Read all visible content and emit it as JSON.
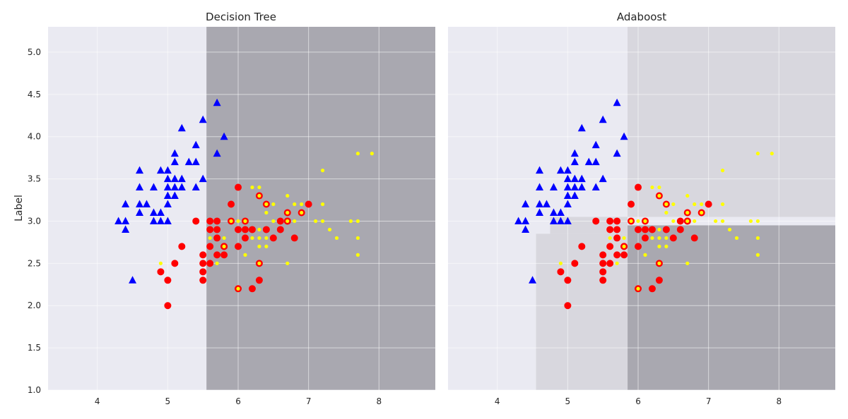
{
  "figure": {
    "background": "#ffffff",
    "axes_facecolor": "#eaeaf2",
    "grid": true
  },
  "colors": {
    "class_0": "#0000ff",
    "class_1": "#ff0000",
    "class_2": "#ffff00",
    "region_light": "#eaeaf2",
    "region_mid": "#d8d7de",
    "region_dark": "#a9a8b0"
  },
  "chart_data": [
    {
      "type": "scatter",
      "title": "Decision Tree",
      "xlabel": "",
      "ylabel": "Label",
      "xlim": [
        3.3,
        8.8
      ],
      "ylim": [
        1.0,
        5.3
      ],
      "xticks": [
        "4",
        "5",
        "6",
        "7",
        "8"
      ],
      "yticks": [
        "1.0",
        "1.5",
        "2.0",
        "2.5",
        "3.0",
        "3.5",
        "4.0",
        "4.5",
        "5.0"
      ],
      "decision_regions": [
        {
          "shade": "dark",
          "x": [
            5.55,
            8.8
          ],
          "y": [
            1.0,
            5.3
          ]
        }
      ],
      "train_triangles": [
        [
          4.3,
          3.0
        ],
        [
          4.4,
          2.9
        ],
        [
          4.4,
          3.0
        ],
        [
          4.4,
          3.2
        ],
        [
          4.5,
          2.3
        ],
        [
          4.6,
          3.1
        ],
        [
          4.6,
          3.2
        ],
        [
          4.6,
          3.4
        ],
        [
          4.6,
          3.6
        ],
        [
          4.7,
          3.2
        ],
        [
          4.8,
          3.0
        ],
        [
          4.8,
          3.1
        ],
        [
          4.8,
          3.4
        ],
        [
          4.9,
          3.0
        ],
        [
          4.9,
          3.1
        ],
        [
          4.9,
          3.6
        ],
        [
          5.0,
          3.0
        ],
        [
          5.0,
          3.2
        ],
        [
          5.0,
          3.3
        ],
        [
          5.0,
          3.4
        ],
        [
          5.0,
          3.5
        ],
        [
          5.0,
          3.6
        ],
        [
          5.1,
          3.3
        ],
        [
          5.1,
          3.4
        ],
        [
          5.1,
          3.5
        ],
        [
          5.1,
          3.7
        ],
        [
          5.1,
          3.8
        ],
        [
          5.2,
          3.4
        ],
        [
          5.2,
          3.5
        ],
        [
          5.2,
          4.1
        ],
        [
          5.3,
          3.7
        ],
        [
          5.4,
          3.4
        ],
        [
          5.4,
          3.7
        ],
        [
          5.4,
          3.9
        ],
        [
          5.5,
          3.5
        ],
        [
          5.5,
          4.2
        ],
        [
          5.7,
          3.8
        ],
        [
          5.7,
          4.4
        ],
        [
          5.8,
          4.0
        ]
      ],
      "train_circles": [
        [
          4.9,
          2.4
        ],
        [
          5.0,
          2.0
        ],
        [
          5.0,
          2.3
        ],
        [
          5.1,
          2.5
        ],
        [
          5.2,
          2.7
        ],
        [
          5.4,
          3.0
        ],
        [
          5.5,
          2.3
        ],
        [
          5.5,
          2.4
        ],
        [
          5.5,
          2.5
        ],
        [
          5.5,
          2.6
        ],
        [
          5.6,
          2.5
        ],
        [
          5.6,
          2.7
        ],
        [
          5.6,
          2.9
        ],
        [
          5.6,
          3.0
        ],
        [
          5.7,
          2.6
        ],
        [
          5.7,
          2.8
        ],
        [
          5.7,
          2.9
        ],
        [
          5.7,
          3.0
        ],
        [
          5.8,
          2.6
        ],
        [
          5.8,
          2.7
        ],
        [
          5.9,
          3.2
        ],
        [
          6.0,
          2.7
        ],
        [
          6.0,
          2.9
        ],
        [
          6.0,
          3.4
        ],
        [
          6.1,
          2.8
        ],
        [
          6.1,
          2.9
        ],
        [
          6.2,
          2.2
        ],
        [
          6.2,
          2.9
        ],
        [
          6.3,
          2.3
        ],
        [
          6.4,
          2.9
        ],
        [
          6.5,
          2.8
        ],
        [
          6.6,
          2.9
        ],
        [
          6.6,
          3.0
        ],
        [
          6.7,
          3.0
        ],
        [
          6.8,
          2.8
        ],
        [
          7.0,
          3.2
        ]
      ],
      "train_ringed": [
        [
          5.8,
          2.7
        ],
        [
          5.9,
          3.0
        ],
        [
          6.0,
          2.2
        ],
        [
          6.1,
          3.0
        ],
        [
          6.3,
          2.5
        ],
        [
          6.3,
          3.3
        ],
        [
          6.4,
          3.2
        ],
        [
          6.7,
          3.0
        ],
        [
          6.7,
          3.1
        ],
        [
          6.9,
          3.1
        ]
      ],
      "train_dots": [
        [
          4.9,
          2.5
        ],
        [
          5.6,
          2.8
        ],
        [
          5.7,
          2.5
        ],
        [
          5.8,
          2.8
        ],
        [
          6.0,
          3.0
        ],
        [
          6.1,
          2.6
        ],
        [
          6.1,
          3.0
        ],
        [
          6.2,
          2.8
        ],
        [
          6.2,
          3.4
        ],
        [
          6.3,
          2.7
        ],
        [
          6.3,
          2.8
        ],
        [
          6.3,
          2.9
        ],
        [
          6.3,
          3.4
        ],
        [
          6.4,
          2.7
        ],
        [
          6.4,
          2.8
        ],
        [
          6.4,
          3.1
        ],
        [
          6.5,
          3.0
        ],
        [
          6.5,
          3.2
        ],
        [
          6.7,
          2.5
        ],
        [
          6.7,
          3.3
        ],
        [
          6.8,
          3.0
        ],
        [
          6.8,
          3.2
        ],
        [
          6.9,
          3.2
        ],
        [
          7.1,
          3.0
        ],
        [
          7.2,
          3.0
        ],
        [
          7.2,
          3.2
        ],
        [
          7.2,
          3.6
        ],
        [
          7.3,
          2.9
        ],
        [
          7.4,
          2.8
        ],
        [
          7.6,
          3.0
        ],
        [
          7.7,
          2.6
        ],
        [
          7.7,
          2.8
        ],
        [
          7.7,
          3.0
        ],
        [
          7.7,
          3.8
        ],
        [
          7.9,
          3.8
        ]
      ]
    },
    {
      "type": "scatter",
      "title": "Adaboost",
      "xlabel": "",
      "ylabel": "",
      "xlim": [
        3.3,
        8.8
      ],
      "ylim": [
        1.0,
        5.3
      ],
      "xticks": [
        "4",
        "5",
        "6",
        "7",
        "8"
      ],
      "yticks": [],
      "decision_regions": [
        {
          "shade": "mid",
          "x": [
            5.85,
            8.8
          ],
          "y": [
            3.05,
            5.3
          ]
        },
        {
          "shade": "mid",
          "x": [
            4.55,
            5.85
          ],
          "y": [
            1.0,
            2.85
          ]
        },
        {
          "shade": "mid",
          "x": [
            4.75,
            5.85
          ],
          "y": [
            2.85,
            3.05
          ]
        },
        {
          "shade": "dark",
          "x": [
            5.85,
            8.8
          ],
          "y": [
            1.0,
            2.95
          ]
        }
      ],
      "train_triangles": [
        [
          4.3,
          3.0
        ],
        [
          4.4,
          2.9
        ],
        [
          4.4,
          3.0
        ],
        [
          4.4,
          3.2
        ],
        [
          4.5,
          2.3
        ],
        [
          4.6,
          3.1
        ],
        [
          4.6,
          3.2
        ],
        [
          4.6,
          3.4
        ],
        [
          4.6,
          3.6
        ],
        [
          4.7,
          3.2
        ],
        [
          4.8,
          3.0
        ],
        [
          4.8,
          3.1
        ],
        [
          4.8,
          3.4
        ],
        [
          4.9,
          3.0
        ],
        [
          4.9,
          3.1
        ],
        [
          4.9,
          3.6
        ],
        [
          5.0,
          3.0
        ],
        [
          5.0,
          3.2
        ],
        [
          5.0,
          3.3
        ],
        [
          5.0,
          3.4
        ],
        [
          5.0,
          3.5
        ],
        [
          5.0,
          3.6
        ],
        [
          5.1,
          3.3
        ],
        [
          5.1,
          3.4
        ],
        [
          5.1,
          3.5
        ],
        [
          5.1,
          3.7
        ],
        [
          5.1,
          3.8
        ],
        [
          5.2,
          3.4
        ],
        [
          5.2,
          3.5
        ],
        [
          5.2,
          4.1
        ],
        [
          5.3,
          3.7
        ],
        [
          5.4,
          3.4
        ],
        [
          5.4,
          3.7
        ],
        [
          5.4,
          3.9
        ],
        [
          5.5,
          3.5
        ],
        [
          5.5,
          4.2
        ],
        [
          5.7,
          3.8
        ],
        [
          5.7,
          4.4
        ],
        [
          5.8,
          4.0
        ]
      ],
      "train_circles": [
        [
          4.9,
          2.4
        ],
        [
          5.0,
          2.0
        ],
        [
          5.0,
          2.3
        ],
        [
          5.1,
          2.5
        ],
        [
          5.2,
          2.7
        ],
        [
          5.4,
          3.0
        ],
        [
          5.5,
          2.3
        ],
        [
          5.5,
          2.4
        ],
        [
          5.5,
          2.5
        ],
        [
          5.5,
          2.6
        ],
        [
          5.6,
          2.5
        ],
        [
          5.6,
          2.7
        ],
        [
          5.6,
          2.9
        ],
        [
          5.6,
          3.0
        ],
        [
          5.7,
          2.6
        ],
        [
          5.7,
          2.8
        ],
        [
          5.7,
          2.9
        ],
        [
          5.7,
          3.0
        ],
        [
          5.8,
          2.6
        ],
        [
          5.8,
          2.7
        ],
        [
          5.9,
          3.2
        ],
        [
          6.0,
          2.7
        ],
        [
          6.0,
          2.9
        ],
        [
          6.0,
          3.4
        ],
        [
          6.1,
          2.8
        ],
        [
          6.1,
          2.9
        ],
        [
          6.2,
          2.2
        ],
        [
          6.2,
          2.9
        ],
        [
          6.3,
          2.3
        ],
        [
          6.4,
          2.9
        ],
        [
          6.5,
          2.8
        ],
        [
          6.6,
          2.9
        ],
        [
          6.6,
          3.0
        ],
        [
          6.7,
          3.0
        ],
        [
          6.8,
          2.8
        ],
        [
          7.0,
          3.2
        ]
      ],
      "train_ringed": [
        [
          5.8,
          2.7
        ],
        [
          5.9,
          3.0
        ],
        [
          6.0,
          2.2
        ],
        [
          6.1,
          3.0
        ],
        [
          6.3,
          2.5
        ],
        [
          6.3,
          3.3
        ],
        [
          6.4,
          3.2
        ],
        [
          6.7,
          3.0
        ],
        [
          6.7,
          3.1
        ],
        [
          6.9,
          3.1
        ]
      ],
      "train_dots": [
        [
          4.9,
          2.5
        ],
        [
          5.6,
          2.8
        ],
        [
          5.7,
          2.5
        ],
        [
          5.8,
          2.8
        ],
        [
          6.0,
          3.0
        ],
        [
          6.1,
          2.6
        ],
        [
          6.1,
          3.0
        ],
        [
          6.2,
          2.8
        ],
        [
          6.2,
          3.4
        ],
        [
          6.3,
          2.7
        ],
        [
          6.3,
          2.8
        ],
        [
          6.3,
          2.9
        ],
        [
          6.3,
          3.4
        ],
        [
          6.4,
          2.7
        ],
        [
          6.4,
          2.8
        ],
        [
          6.4,
          3.1
        ],
        [
          6.5,
          3.0
        ],
        [
          6.5,
          3.2
        ],
        [
          6.7,
          2.5
        ],
        [
          6.7,
          3.3
        ],
        [
          6.8,
          3.0
        ],
        [
          6.8,
          3.2
        ],
        [
          6.9,
          3.2
        ],
        [
          7.1,
          3.0
        ],
        [
          7.2,
          3.0
        ],
        [
          7.2,
          3.2
        ],
        [
          7.2,
          3.6
        ],
        [
          7.3,
          2.9
        ],
        [
          7.4,
          2.8
        ],
        [
          7.6,
          3.0
        ],
        [
          7.7,
          2.6
        ],
        [
          7.7,
          2.8
        ],
        [
          7.7,
          3.0
        ],
        [
          7.7,
          3.8
        ],
        [
          7.9,
          3.8
        ]
      ]
    }
  ]
}
